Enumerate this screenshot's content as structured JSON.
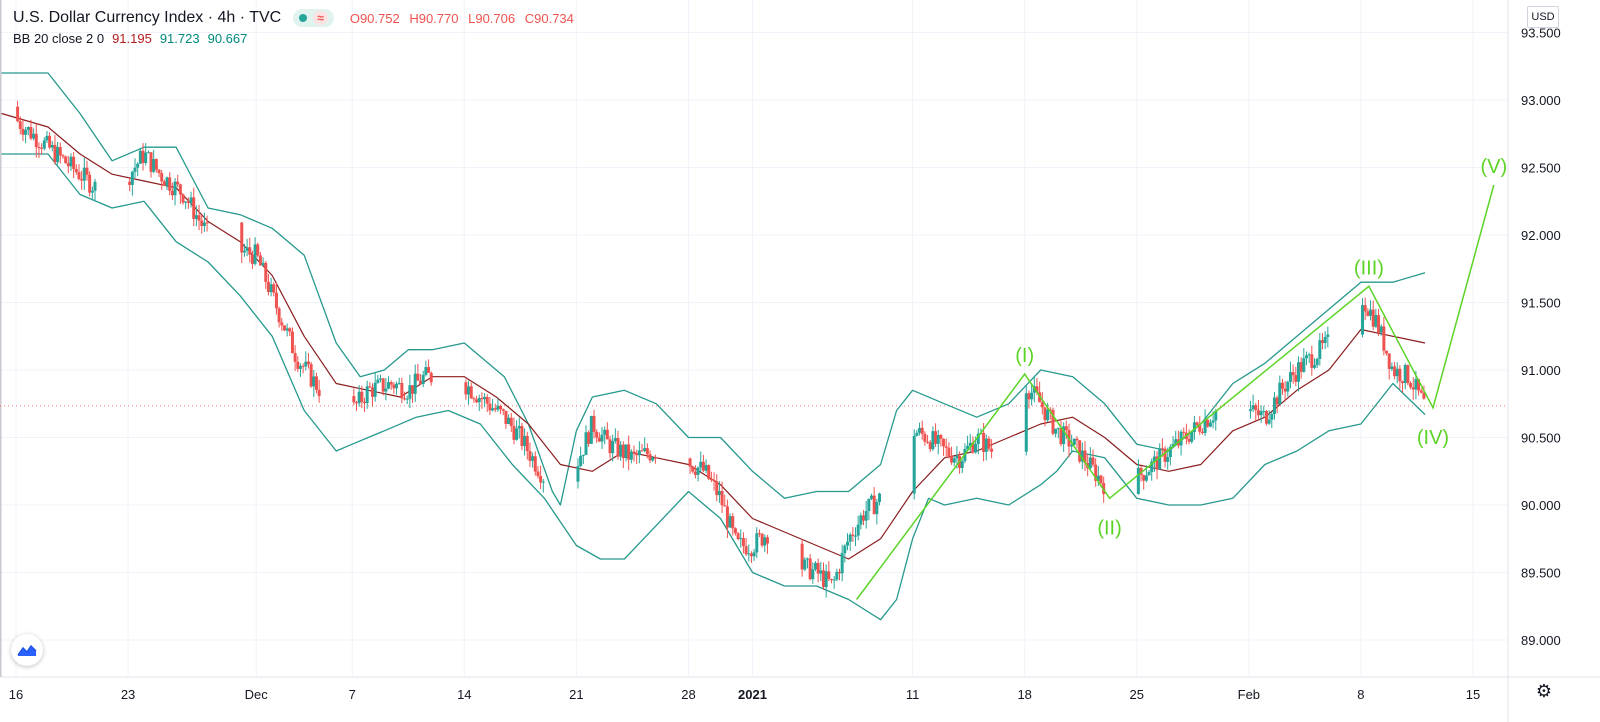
{
  "legend": {
    "title": "U.S. Dollar Currency Index · 4h · TVC",
    "ohlc": {
      "o": "O90.752",
      "h": "H90.770",
      "l": "L90.706",
      "c": "C90.734"
    },
    "indicator": {
      "label": "BB 20 close 2 0",
      "mid": "91.195",
      "upper": "91.723",
      "lower": "90.667"
    }
  },
  "currency_badge": "USD",
  "colors": {
    "up": "#26a69a",
    "down": "#ef5350",
    "band": "#26998d",
    "basis": "#8b1d1d",
    "wave": "#5bd425",
    "grid": "#f0f3fa",
    "price_line": "#ef5350"
  },
  "icons": {
    "logo": "tradingview-logo-icon",
    "settings": "gear-icon"
  },
  "chart_data": {
    "type": "candlestick",
    "title": "U.S. Dollar Currency Index",
    "interval": "4h",
    "source": "TVC",
    "ylim": [
      88.75,
      93.55
    ],
    "y_ticks": [
      "93.500",
      "93.000",
      "92.500",
      "92.000",
      "91.500",
      "91.000",
      "90.500",
      "90.000",
      "89.500",
      "89.000"
    ],
    "y_tick_values": [
      93.5,
      93.0,
      92.5,
      92.0,
      91.5,
      91.0,
      90.5,
      90.0,
      89.5,
      89.0
    ],
    "x_ticks": [
      {
        "label": "16",
        "day": 0
      },
      {
        "label": "23",
        "day": 7
      },
      {
        "label": "Dec",
        "day": 15
      },
      {
        "label": "7",
        "day": 21
      },
      {
        "label": "14",
        "day": 28
      },
      {
        "label": "21",
        "day": 35
      },
      {
        "label": "28",
        "day": 42
      },
      {
        "label": "2021",
        "day": 46
      },
      {
        "label": "11",
        "day": 56
      },
      {
        "label": "18",
        "day": 63
      },
      {
        "label": "25",
        "day": 70
      },
      {
        "label": "Feb",
        "day": 77
      },
      {
        "label": "8",
        "day": 84
      },
      {
        "label": "15",
        "day": 91
      }
    ],
    "x_day_range": [
      -0.9,
      93.2
    ],
    "last_close": 90.734,
    "close_path": [
      [
        -0.9,
        92.95
      ],
      [
        1,
        92.75
      ],
      [
        3,
        92.55
      ],
      [
        5,
        92.35
      ],
      [
        6.5,
        92.35
      ],
      [
        8,
        92.6
      ],
      [
        9,
        92.45
      ],
      [
        10.5,
        92.3
      ],
      [
        12,
        92.0
      ],
      [
        13.5,
        91.9
      ],
      [
        15,
        91.85
      ],
      [
        16,
        91.55
      ],
      [
        17.5,
        91.1
      ],
      [
        19,
        90.85
      ],
      [
        20,
        90.6
      ],
      [
        21,
        90.7
      ],
      [
        22,
        90.85
      ],
      [
        23.5,
        90.9
      ],
      [
        24.5,
        90.85
      ],
      [
        25.5,
        90.95
      ],
      [
        27,
        90.95
      ],
      [
        28,
        90.9
      ],
      [
        29,
        90.8
      ],
      [
        30.5,
        90.65
      ],
      [
        31.5,
        90.5
      ],
      [
        33,
        90.2
      ],
      [
        34,
        89.95
      ],
      [
        35,
        90.3
      ],
      [
        36,
        90.6
      ],
      [
        37,
        90.45
      ],
      [
        38.5,
        90.35
      ],
      [
        40,
        90.4
      ],
      [
        41.5,
        90.35
      ],
      [
        43,
        90.25
      ],
      [
        44,
        90.05
      ],
      [
        45,
        89.7
      ],
      [
        46,
        89.7
      ],
      [
        47,
        89.8
      ],
      [
        48,
        89.6
      ],
      [
        49,
        89.55
      ],
      [
        50,
        89.5
      ],
      [
        51,
        89.4
      ],
      [
        52,
        89.75
      ],
      [
        53,
        89.95
      ],
      [
        54,
        90.05
      ],
      [
        55,
        90.35
      ],
      [
        56,
        90.55
      ],
      [
        57,
        90.5
      ],
      [
        58,
        90.4
      ],
      [
        59,
        90.35
      ],
      [
        60,
        90.5
      ],
      [
        61,
        90.4
      ],
      [
        62,
        90.65
      ],
      [
        63,
        90.9
      ],
      [
        64,
        90.75
      ],
      [
        65,
        90.55
      ],
      [
        66,
        90.45
      ],
      [
        67,
        90.3
      ],
      [
        68,
        90.15
      ],
      [
        69,
        90.1
      ],
      [
        70,
        90.2
      ],
      [
        71,
        90.3
      ],
      [
        72,
        90.4
      ],
      [
        73,
        90.5
      ],
      [
        74,
        90.6
      ],
      [
        75,
        90.7
      ],
      [
        76,
        90.55
      ],
      [
        77,
        90.7
      ],
      [
        78,
        90.65
      ],
      [
        79,
        90.85
      ],
      [
        80,
        91.0
      ],
      [
        81,
        91.1
      ],
      [
        82,
        91.2
      ],
      [
        83,
        91.4
      ],
      [
        84,
        91.55
      ],
      [
        85,
        91.35
      ],
      [
        86,
        91.0
      ],
      [
        87,
        90.95
      ],
      [
        88,
        90.73
      ]
    ],
    "bollinger": {
      "period": 20,
      "source": "close",
      "mult": 2,
      "upper": [
        [
          -0.9,
          93.2
        ],
        [
          2,
          93.2
        ],
        [
          4,
          92.9
        ],
        [
          6,
          92.55
        ],
        [
          8,
          92.65
        ],
        [
          10,
          92.65
        ],
        [
          12,
          92.2
        ],
        [
          14,
          92.15
        ],
        [
          16,
          92.05
        ],
        [
          18,
          91.85
        ],
        [
          20,
          91.2
        ],
        [
          21.5,
          90.95
        ],
        [
          23,
          91.0
        ],
        [
          24.5,
          91.15
        ],
        [
          26,
          91.15
        ],
        [
          28,
          91.2
        ],
        [
          30.5,
          90.95
        ],
        [
          32,
          90.6
        ],
        [
          33.5,
          90.1
        ],
        [
          34,
          90.0
        ],
        [
          35,
          90.55
        ],
        [
          36,
          90.8
        ],
        [
          38,
          90.85
        ],
        [
          40,
          90.75
        ],
        [
          42,
          90.5
        ],
        [
          44,
          90.5
        ],
        [
          46,
          90.25
        ],
        [
          48,
          90.05
        ],
        [
          50,
          90.1
        ],
        [
          52,
          90.1
        ],
        [
          54,
          90.3
        ],
        [
          55,
          90.7
        ],
        [
          56,
          90.85
        ],
        [
          58,
          90.75
        ],
        [
          60,
          90.65
        ],
        [
          62,
          90.75
        ],
        [
          64,
          91.0
        ],
        [
          66,
          90.95
        ],
        [
          68,
          90.75
        ],
        [
          70,
          90.45
        ],
        [
          72,
          90.4
        ],
        [
          74,
          90.6
        ],
        [
          76,
          90.9
        ],
        [
          78,
          91.05
        ],
        [
          80,
          91.25
        ],
        [
          82,
          91.45
        ],
        [
          84,
          91.65
        ],
        [
          86,
          91.65
        ],
        [
          88,
          91.72
        ]
      ],
      "basis": [
        [
          -0.9,
          92.9
        ],
        [
          2,
          92.8
        ],
        [
          4,
          92.6
        ],
        [
          6,
          92.45
        ],
        [
          8,
          92.4
        ],
        [
          10,
          92.35
        ],
        [
          12,
          92.1
        ],
        [
          14,
          91.95
        ],
        [
          16,
          91.7
        ],
        [
          18,
          91.25
        ],
        [
          20,
          90.9
        ],
        [
          22,
          90.85
        ],
        [
          24,
          90.8
        ],
        [
          26,
          90.95
        ],
        [
          28,
          90.95
        ],
        [
          30,
          90.8
        ],
        [
          32,
          90.6
        ],
        [
          34,
          90.3
        ],
        [
          36,
          90.25
        ],
        [
          38,
          90.4
        ],
        [
          40,
          90.35
        ],
        [
          42,
          90.3
        ],
        [
          44,
          90.15
        ],
        [
          46,
          89.9
        ],
        [
          48,
          89.8
        ],
        [
          50,
          89.7
        ],
        [
          52,
          89.6
        ],
        [
          54,
          89.75
        ],
        [
          56,
          90.1
        ],
        [
          58,
          90.35
        ],
        [
          60,
          90.4
        ],
        [
          62,
          90.5
        ],
        [
          64,
          90.6
        ],
        [
          66,
          90.65
        ],
        [
          68,
          90.5
        ],
        [
          70,
          90.3
        ],
        [
          72,
          90.25
        ],
        [
          74,
          90.3
        ],
        [
          76,
          90.55
        ],
        [
          78,
          90.65
        ],
        [
          80,
          90.85
        ],
        [
          82,
          91.0
        ],
        [
          84,
          91.3
        ],
        [
          86,
          91.25
        ],
        [
          88,
          91.2
        ]
      ],
      "lower": [
        [
          -0.9,
          92.6
        ],
        [
          2,
          92.6
        ],
        [
          4,
          92.3
        ],
        [
          6,
          92.2
        ],
        [
          8,
          92.25
        ],
        [
          10,
          91.95
        ],
        [
          12,
          91.8
        ],
        [
          14,
          91.55
        ],
        [
          16,
          91.25
        ],
        [
          18,
          90.7
        ],
        [
          20,
          90.4
        ],
        [
          21,
          90.45
        ],
        [
          23,
          90.55
        ],
        [
          25,
          90.65
        ],
        [
          27,
          90.7
        ],
        [
          29,
          90.6
        ],
        [
          31,
          90.3
        ],
        [
          33,
          90.05
        ],
        [
          35,
          89.7
        ],
        [
          36.5,
          89.6
        ],
        [
          38,
          89.6
        ],
        [
          40,
          89.85
        ],
        [
          42,
          90.1
        ],
        [
          44,
          89.9
        ],
        [
          46,
          89.5
        ],
        [
          48,
          89.4
        ],
        [
          50,
          89.4
        ],
        [
          52,
          89.3
        ],
        [
          54,
          89.15
        ],
        [
          55,
          89.3
        ],
        [
          56,
          89.75
        ],
        [
          57,
          90.05
        ],
        [
          58,
          90.0
        ],
        [
          60,
          90.05
        ],
        [
          62,
          90.0
        ],
        [
          64,
          90.15
        ],
        [
          65,
          90.25
        ],
        [
          66,
          90.4
        ],
        [
          68,
          90.35
        ],
        [
          70,
          90.05
        ],
        [
          72,
          90.0
        ],
        [
          74,
          90.0
        ],
        [
          76,
          90.05
        ],
        [
          78,
          90.3
        ],
        [
          80,
          90.4
        ],
        [
          82,
          90.55
        ],
        [
          84,
          90.6
        ],
        [
          86,
          90.9
        ],
        [
          88,
          90.67
        ]
      ]
    },
    "elliott_wave": {
      "points": [
        [
          52.5,
          89.3
        ],
        [
          63,
          90.97
        ],
        [
          68.3,
          90.05
        ],
        [
          84.5,
          91.62
        ],
        [
          88.5,
          90.72
        ],
        [
          92.3,
          92.37
        ]
      ],
      "labels": [
        {
          "text": "(I)",
          "x": 63,
          "y": 90.97,
          "pos": "above"
        },
        {
          "text": "(II)",
          "x": 68.3,
          "y": 90.05,
          "pos": "below"
        },
        {
          "text": "(III)",
          "x": 84.5,
          "y": 91.62,
          "pos": "above"
        },
        {
          "text": "(IV)",
          "x": 88.5,
          "y": 90.72,
          "pos": "below"
        },
        {
          "text": "(V)",
          "x": 92.3,
          "y": 92.37,
          "pos": "above"
        }
      ]
    }
  }
}
